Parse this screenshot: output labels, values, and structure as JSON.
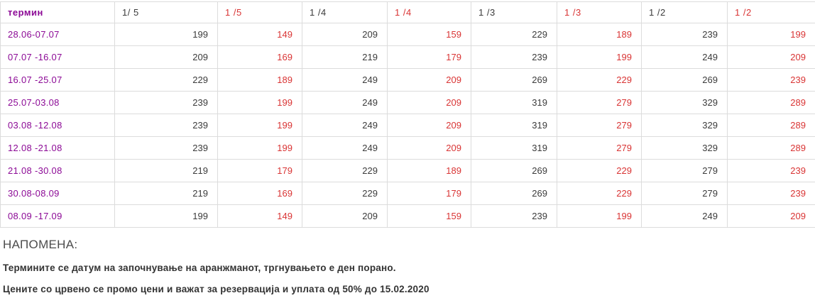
{
  "table": {
    "header": [
      {
        "label": "термин",
        "style": "purple"
      },
      {
        "label": "1/ 5",
        "style": "black"
      },
      {
        "label": "1 /5",
        "style": "red"
      },
      {
        "label": "1 /4",
        "style": "black"
      },
      {
        "label": "1 /4",
        "style": "red"
      },
      {
        "label": "1 /3",
        "style": "black"
      },
      {
        "label": "1 /3",
        "style": "red"
      },
      {
        "label": "1 /2",
        "style": "black"
      },
      {
        "label": "1 /2",
        "style": "red"
      }
    ],
    "rows": [
      {
        "term": "28.06-07.07",
        "prices": [
          199,
          149,
          209,
          159,
          229,
          189,
          239,
          199
        ]
      },
      {
        "term": "07.07 -16.07",
        "prices": [
          209,
          169,
          219,
          179,
          239,
          199,
          249,
          209
        ]
      },
      {
        "term": "16.07 -25.07",
        "prices": [
          229,
          189,
          249,
          209,
          269,
          229,
          269,
          239
        ]
      },
      {
        "term": "25.07-03.08",
        "prices": [
          239,
          199,
          249,
          209,
          319,
          279,
          329,
          289
        ]
      },
      {
        "term": "03.08 -12.08",
        "prices": [
          239,
          199,
          249,
          209,
          319,
          279,
          329,
          289
        ]
      },
      {
        "term": "12.08 -21.08",
        "prices": [
          239,
          199,
          249,
          209,
          319,
          279,
          329,
          289
        ]
      },
      {
        "term": "21.08 -30.08",
        "prices": [
          219,
          179,
          229,
          189,
          269,
          229,
          279,
          239
        ]
      },
      {
        "term": "30.08-08.09",
        "prices": [
          219,
          169,
          229,
          179,
          269,
          229,
          279,
          239
        ]
      },
      {
        "term": "08.09 -17.09",
        "prices": [
          199,
          149,
          209,
          159,
          239,
          199,
          249,
          209
        ]
      }
    ]
  },
  "notes": {
    "heading": "НАПОМЕНА:",
    "line1": "Термините се датум на започнување на аранжманот, тргнувањето е ден порано.",
    "line2": "Цените со црвено се промо цени и важат за резервација и уплата од 50% до 15.02.2020"
  },
  "colors": {
    "term_purple": "#8c0a96",
    "promo_red": "#d93434",
    "price_dark": "#3b3b3b",
    "border": "#dcdcdc"
  }
}
